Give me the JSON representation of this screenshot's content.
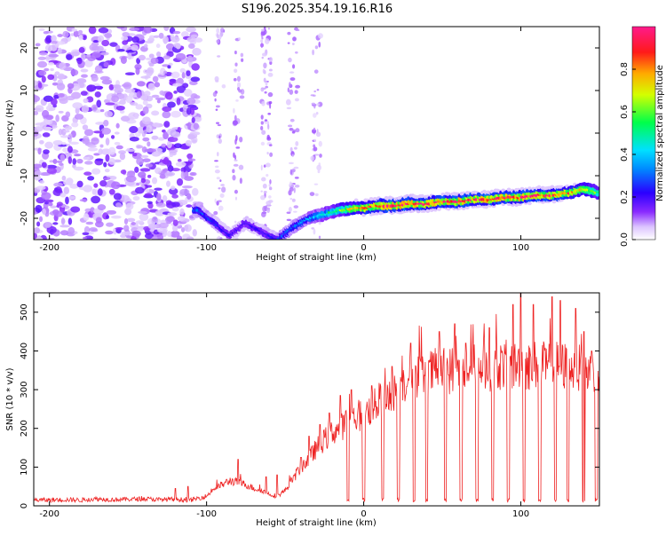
{
  "title": "S196.2025.354.19.16.R16",
  "chart_data": [
    {
      "type": "heatmap",
      "title": "S196.2025.354.19.16.R16",
      "xlabel": "Height of straight line (km)",
      "ylabel": "Frequency (Hz)",
      "xlim": [
        -210,
        150
      ],
      "ylim": [
        -25,
        25
      ],
      "xticks": [
        "-200",
        "-100",
        "0",
        "100"
      ],
      "xtick_values": [
        -200,
        -100,
        0,
        100
      ],
      "yticks": [
        "20",
        "10",
        "0",
        "-10",
        "-20"
      ],
      "ytick_values": [
        20,
        10,
        0,
        -10,
        -20
      ],
      "colorbar": {
        "label": "Normalized spectral amplitude",
        "range": [
          0,
          1
        ],
        "ticks": [
          "0.0",
          "0.2",
          "0.4",
          "0.6",
          "0.8"
        ],
        "tick_values": [
          0.0,
          0.2,
          0.4,
          0.6,
          0.8
        ],
        "colors": [
          "#ffffff",
          "#cc99ff",
          "#7a00ff",
          "#0022ff",
          "#00c8ff",
          "#00ff66",
          "#c8ff00",
          "#ffaa00",
          "#ff0033",
          "#ff1a8c"
        ]
      },
      "ridge": {
        "x": [
          -105,
          -95,
          -85,
          -75,
          -65,
          -55,
          -45,
          -35,
          -25,
          -15,
          -5,
          0,
          10,
          20,
          30,
          40,
          50,
          60,
          70,
          80,
          90,
          100,
          110,
          120,
          130,
          140,
          150
        ],
        "frequency": [
          -18,
          -21,
          -24,
          -21,
          -23,
          -25,
          -22,
          -20,
          -19,
          -18,
          -17.5,
          -17.5,
          -17,
          -17,
          -16.5,
          -16.5,
          -16,
          -16,
          -15.5,
          -15.5,
          -15,
          -15,
          -14.5,
          -14.5,
          -14,
          -13,
          -14
        ],
        "amplitude": [
          0.3,
          0.25,
          0.2,
          0.2,
          0.2,
          0.25,
          0.3,
          0.35,
          0.45,
          0.6,
          0.75,
          0.8,
          0.9,
          0.95,
          0.95,
          0.9,
          0.9,
          0.92,
          0.9,
          0.95,
          0.9,
          0.92,
          0.9,
          0.9,
          0.85,
          0.7,
          0.6
        ]
      }
    },
    {
      "type": "line",
      "xlabel": "Height of straight line (km)",
      "ylabel": "SNR (10 * v/v)",
      "xlim": [
        -210,
        150
      ],
      "ylim": [
        0,
        550
      ],
      "xticks": [
        "-200",
        "-100",
        "0",
        "100"
      ],
      "xtick_values": [
        -200,
        -100,
        0,
        100
      ],
      "yticks": [
        "0",
        "100",
        "200",
        "300",
        "400",
        "500"
      ],
      "ytick_values": [
        0,
        100,
        200,
        300,
        400,
        500
      ],
      "color": "#ee2222",
      "series": [
        {
          "x": [
            -210,
            -200,
            -190,
            -180,
            -170,
            -160,
            -150,
            -140,
            -130,
            -120,
            -110,
            -100,
            -95,
            -90,
            -85,
            -80,
            -75,
            -70,
            -65,
            -60,
            -55,
            -50,
            -45,
            -40,
            -35,
            -30,
            -25,
            -20,
            -15,
            -10,
            -5,
            0,
            5,
            10,
            15,
            20,
            25,
            30,
            35,
            40,
            45,
            50,
            55,
            60,
            65,
            70,
            75,
            80,
            85,
            90,
            95,
            100,
            105,
            110,
            115,
            120,
            125,
            130,
            135,
            140,
            145,
            150
          ],
          "y": [
            15,
            15,
            16,
            15,
            18,
            16,
            17,
            18,
            16,
            17,
            15,
            25,
            45,
            55,
            65,
            60,
            55,
            45,
            40,
            30,
            25,
            40,
            70,
            100,
            120,
            150,
            170,
            190,
            200,
            220,
            230,
            240,
            250,
            270,
            280,
            300,
            320,
            330,
            340,
            340,
            345,
            350,
            350,
            355,
            350,
            355,
            360,
            360,
            360,
            365,
            360,
            365,
            360,
            365,
            360,
            365,
            360,
            360,
            355,
            350,
            340,
            320
          ]
        }
      ],
      "dropouts_x": [
        -10,
        0,
        12,
        22,
        32,
        40,
        52,
        62,
        72,
        82,
        92,
        102,
        112,
        122,
        130,
        140,
        148
      ],
      "spikes": {
        "x": [
          -120,
          -112,
          -80,
          -62,
          -55,
          -40,
          -35,
          -28,
          -22,
          -15,
          -8,
          5,
          18,
          30,
          48,
          58,
          65,
          80,
          95,
          100,
          108,
          120,
          125,
          135,
          140,
          145
        ],
        "y": [
          45,
          50,
          120,
          75,
          80,
          125,
          180,
          210,
          240,
          285,
          300,
          310,
          360,
          420,
          450,
          470,
          420,
          460,
          520,
          550,
          520,
          540,
          530,
          510,
          450,
          400
        ]
      }
    }
  ]
}
